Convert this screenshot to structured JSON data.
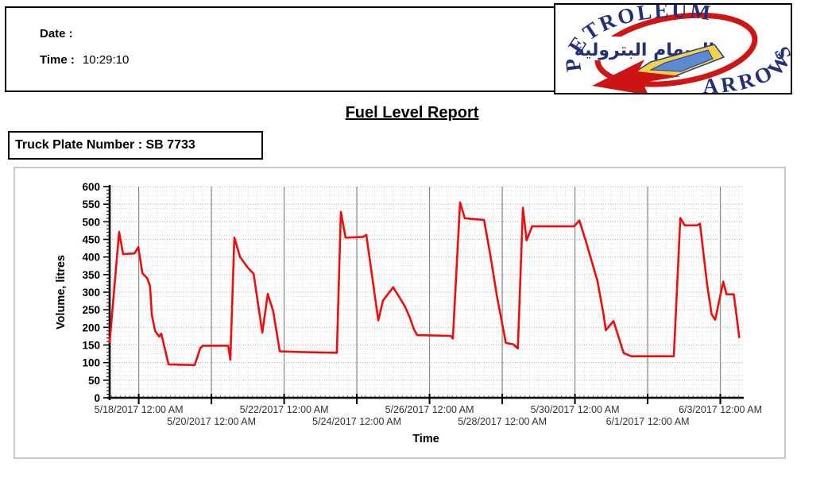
{
  "header": {
    "date_label": "Date :",
    "date_value": "",
    "time_label": "Time :",
    "time_value": "10:29:10"
  },
  "logo": {
    "arc_top_text": "PETROLEUM",
    "arc_bottom_text": "ARROWS",
    "center_text": "السهام البترولية",
    "ring_color": "#cf1616",
    "text_color": "#232f77"
  },
  "report_title": "Fuel Level Report",
  "truck_plate": {
    "label": "Truck Plate Number : SB 7733"
  },
  "chart_data": {
    "type": "line",
    "title": "",
    "xlabel": "Time",
    "ylabel": "Volume, litres",
    "ylim": [
      0,
      600
    ],
    "y_major_step": 50,
    "y_minor_step": 10,
    "grid": "dotted minor grid, solid gray vertical major gridlines",
    "legend": "none",
    "line_color": "#f10c0c",
    "x_unit": "days since 5/17/2017 12:00 AM",
    "x_domain_days": [
      0.2,
      17.6
    ],
    "x_ticks": [
      {
        "t": 1,
        "label": "5/18/2017 12:00 AM",
        "row": 1
      },
      {
        "t": 3,
        "label": "5/20/2017 12:00 AM",
        "row": 2
      },
      {
        "t": 5,
        "label": "5/22/2017 12:00 AM",
        "row": 1
      },
      {
        "t": 7,
        "label": "5/24/2017 12:00 AM",
        "row": 2
      },
      {
        "t": 9,
        "label": "5/26/2017 12:00 AM",
        "row": 1
      },
      {
        "t": 11,
        "label": "5/28/2017 12:00 AM",
        "row": 2
      },
      {
        "t": 13,
        "label": "5/30/2017 12:00 AM",
        "row": 1
      },
      {
        "t": 15,
        "label": "6/1/2017 12:00 AM",
        "row": 2
      },
      {
        "t": 17,
        "label": "6/3/2017 12:00 AM",
        "row": 1
      }
    ],
    "points": [
      [
        0.2,
        158
      ],
      [
        0.46,
        471
      ],
      [
        0.57,
        408
      ],
      [
        0.88,
        410
      ],
      [
        0.99,
        428
      ],
      [
        1.1,
        354
      ],
      [
        1.23,
        340
      ],
      [
        1.31,
        318
      ],
      [
        1.36,
        235
      ],
      [
        1.45,
        190
      ],
      [
        1.56,
        174
      ],
      [
        1.62,
        182
      ],
      [
        1.82,
        95
      ],
      [
        2.54,
        93
      ],
      [
        2.69,
        140
      ],
      [
        2.76,
        148
      ],
      [
        3.46,
        148
      ],
      [
        3.52,
        108
      ],
      [
        3.63,
        455
      ],
      [
        3.79,
        400
      ],
      [
        4.0,
        370
      ],
      [
        4.16,
        352
      ],
      [
        4.4,
        185
      ],
      [
        4.55,
        295
      ],
      [
        4.7,
        245
      ],
      [
        4.88,
        132
      ],
      [
        5.5,
        130
      ],
      [
        6.45,
        128
      ],
      [
        6.56,
        528
      ],
      [
        6.69,
        455
      ],
      [
        7.17,
        457
      ],
      [
        7.26,
        463
      ],
      [
        7.59,
        220
      ],
      [
        7.72,
        276
      ],
      [
        8.0,
        314
      ],
      [
        8.31,
        262
      ],
      [
        8.45,
        230
      ],
      [
        8.57,
        195
      ],
      [
        8.66,
        178
      ],
      [
        9.58,
        176
      ],
      [
        9.64,
        168
      ],
      [
        9.84,
        555
      ],
      [
        9.97,
        510
      ],
      [
        10.5,
        505
      ],
      [
        10.7,
        389
      ],
      [
        10.85,
        291
      ],
      [
        11.1,
        156
      ],
      [
        11.3,
        152
      ],
      [
        11.43,
        140
      ],
      [
        11.57,
        540
      ],
      [
        11.67,
        447
      ],
      [
        11.82,
        487
      ],
      [
        12.98,
        487
      ],
      [
        13.12,
        504
      ],
      [
        13.3,
        445
      ],
      [
        13.62,
        332
      ],
      [
        13.79,
        235
      ],
      [
        13.85,
        192
      ],
      [
        14.06,
        218
      ],
      [
        14.34,
        127
      ],
      [
        14.55,
        118
      ],
      [
        15.72,
        118
      ],
      [
        15.9,
        511
      ],
      [
        16.02,
        490
      ],
      [
        16.36,
        490
      ],
      [
        16.44,
        495
      ],
      [
        16.64,
        319
      ],
      [
        16.76,
        237
      ],
      [
        16.86,
        222
      ],
      [
        17.08,
        330
      ],
      [
        17.17,
        294
      ],
      [
        17.37,
        294
      ],
      [
        17.52,
        172
      ]
    ]
  }
}
